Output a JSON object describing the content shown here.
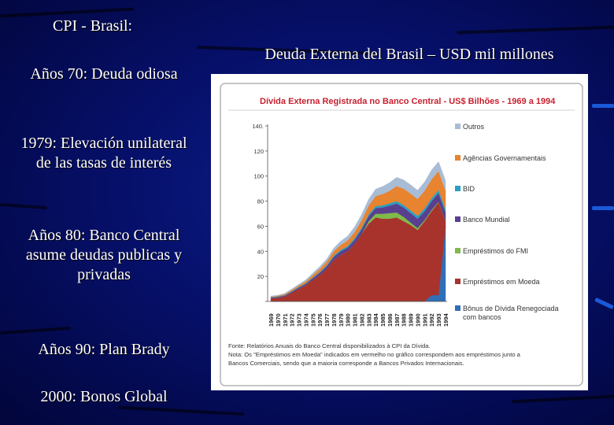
{
  "slide": {
    "left_title": "CPI - Brasil:",
    "right_title": "Deuda Externa del Brasil – USD mil millones",
    "bullets": [
      "Años 70: Deuda odiosa",
      "1979: Elevación unilateral de las tasas de interés",
      "Años 80: Banco Central asume deudas publicas y privadas",
      "Años 90: Plan Brady",
      "2000: Bonos Global"
    ]
  },
  "chart_data": {
    "type": "area",
    "title": "Dívida Externa  Registrada no Banco Central - US$ Bilhões - 1969 a 1994",
    "x": [
      "1969",
      "1970",
      "1971",
      "1972",
      "1973",
      "1974",
      "1975",
      "1976",
      "1977",
      "1978",
      "1979",
      "1980",
      "1981",
      "1982",
      "1983",
      "1984",
      "1985",
      "1986",
      "1987",
      "1988",
      "1989",
      "1990",
      "1991",
      "1992",
      "1993",
      "1994"
    ],
    "ylim": [
      0,
      140
    ],
    "yticks": [
      0,
      20,
      40,
      60,
      80,
      100,
      120,
      140
    ],
    "ytick_labels": [
      "",
      "20",
      "40",
      "60",
      "80",
      "100",
      "120",
      "140."
    ],
    "grid": false,
    "legend_position": "right",
    "series": [
      {
        "name": "Bônus de Dívida Renegociada com bancos",
        "color": "#2f6fb7",
        "values": [
          0,
          0,
          0,
          0,
          0,
          0,
          0,
          0,
          0,
          0,
          0,
          0,
          0,
          0,
          0,
          0,
          0,
          0,
          0,
          0,
          0,
          0,
          0,
          5,
          5,
          60
        ]
      },
      {
        "name": "Empréstimos em Moeda",
        "color": "#a8332d",
        "values": [
          2.5,
          3,
          4,
          7,
          10,
          13,
          17,
          21,
          26,
          33,
          37,
          40,
          46,
          54,
          62,
          67,
          66,
          66,
          67,
          64,
          61,
          57,
          64,
          67,
          74,
          4
        ]
      },
      {
        "name": "Empréstimos do FMI",
        "color": "#7fba4a",
        "values": [
          0,
          0,
          0,
          0,
          0,
          0,
          0,
          0,
          0,
          0,
          0,
          0,
          0,
          0,
          2,
          3,
          4,
          4.5,
          4,
          3.5,
          2,
          1.5,
          1,
          1,
          0.5,
          0.3
        ]
      },
      {
        "name": "Banco Mundial",
        "color": "#5a3f8f",
        "values": [
          0.5,
          0.6,
          0.7,
          0.8,
          1,
          1,
          1.5,
          1.8,
          2,
          2.5,
          3,
          3,
          3.2,
          3.5,
          4,
          4.5,
          5,
          6,
          7,
          7.5,
          7.5,
          7.5,
          7,
          7,
          7,
          6.5
        ]
      },
      {
        "name": "BID",
        "color": "#2aa0c0",
        "values": [
          0.3,
          0.3,
          0.4,
          0.4,
          0.5,
          0.5,
          0.6,
          0.7,
          0.8,
          1,
          1.1,
          1.2,
          1.3,
          1.4,
          1.5,
          1.6,
          1.7,
          1.8,
          2,
          2,
          2.1,
          2.2,
          2.3,
          2.4,
          2.5,
          2.6
        ]
      },
      {
        "name": "Agências Governamentais",
        "color": "#e8832f",
        "values": [
          0.5,
          0.6,
          0.8,
          1,
          1.2,
          1.5,
          2,
          2.5,
          3,
          3.5,
          4,
          4.5,
          5,
          6,
          7,
          8,
          9,
          10,
          12,
          13,
          13.5,
          13.5,
          14,
          15,
          15,
          15
        ]
      },
      {
        "name": "Outros",
        "color": "#a9bcd6",
        "values": [
          0.5,
          0.5,
          0.6,
          0.8,
          1,
          1.2,
          1.5,
          1.8,
          2,
          2.5,
          3,
          3.5,
          4,
          4.5,
          5,
          5.5,
          6,
          6.5,
          7,
          7,
          7,
          7,
          7,
          7.5,
          7.5,
          8
        ]
      }
    ],
    "note_lines": [
      "Fonte: Relatórios Anuais do Banco Central disponibilizados à CPI da Dívida.",
      "Nota: Os \"Empréstimos em Moeda\" indicados em vermelho no gráfico correspondem aos empréstimos junto a",
      "Bancos Comerciais, sendo que a maioria corresponde a Bancos Privados Internacionais."
    ]
  }
}
